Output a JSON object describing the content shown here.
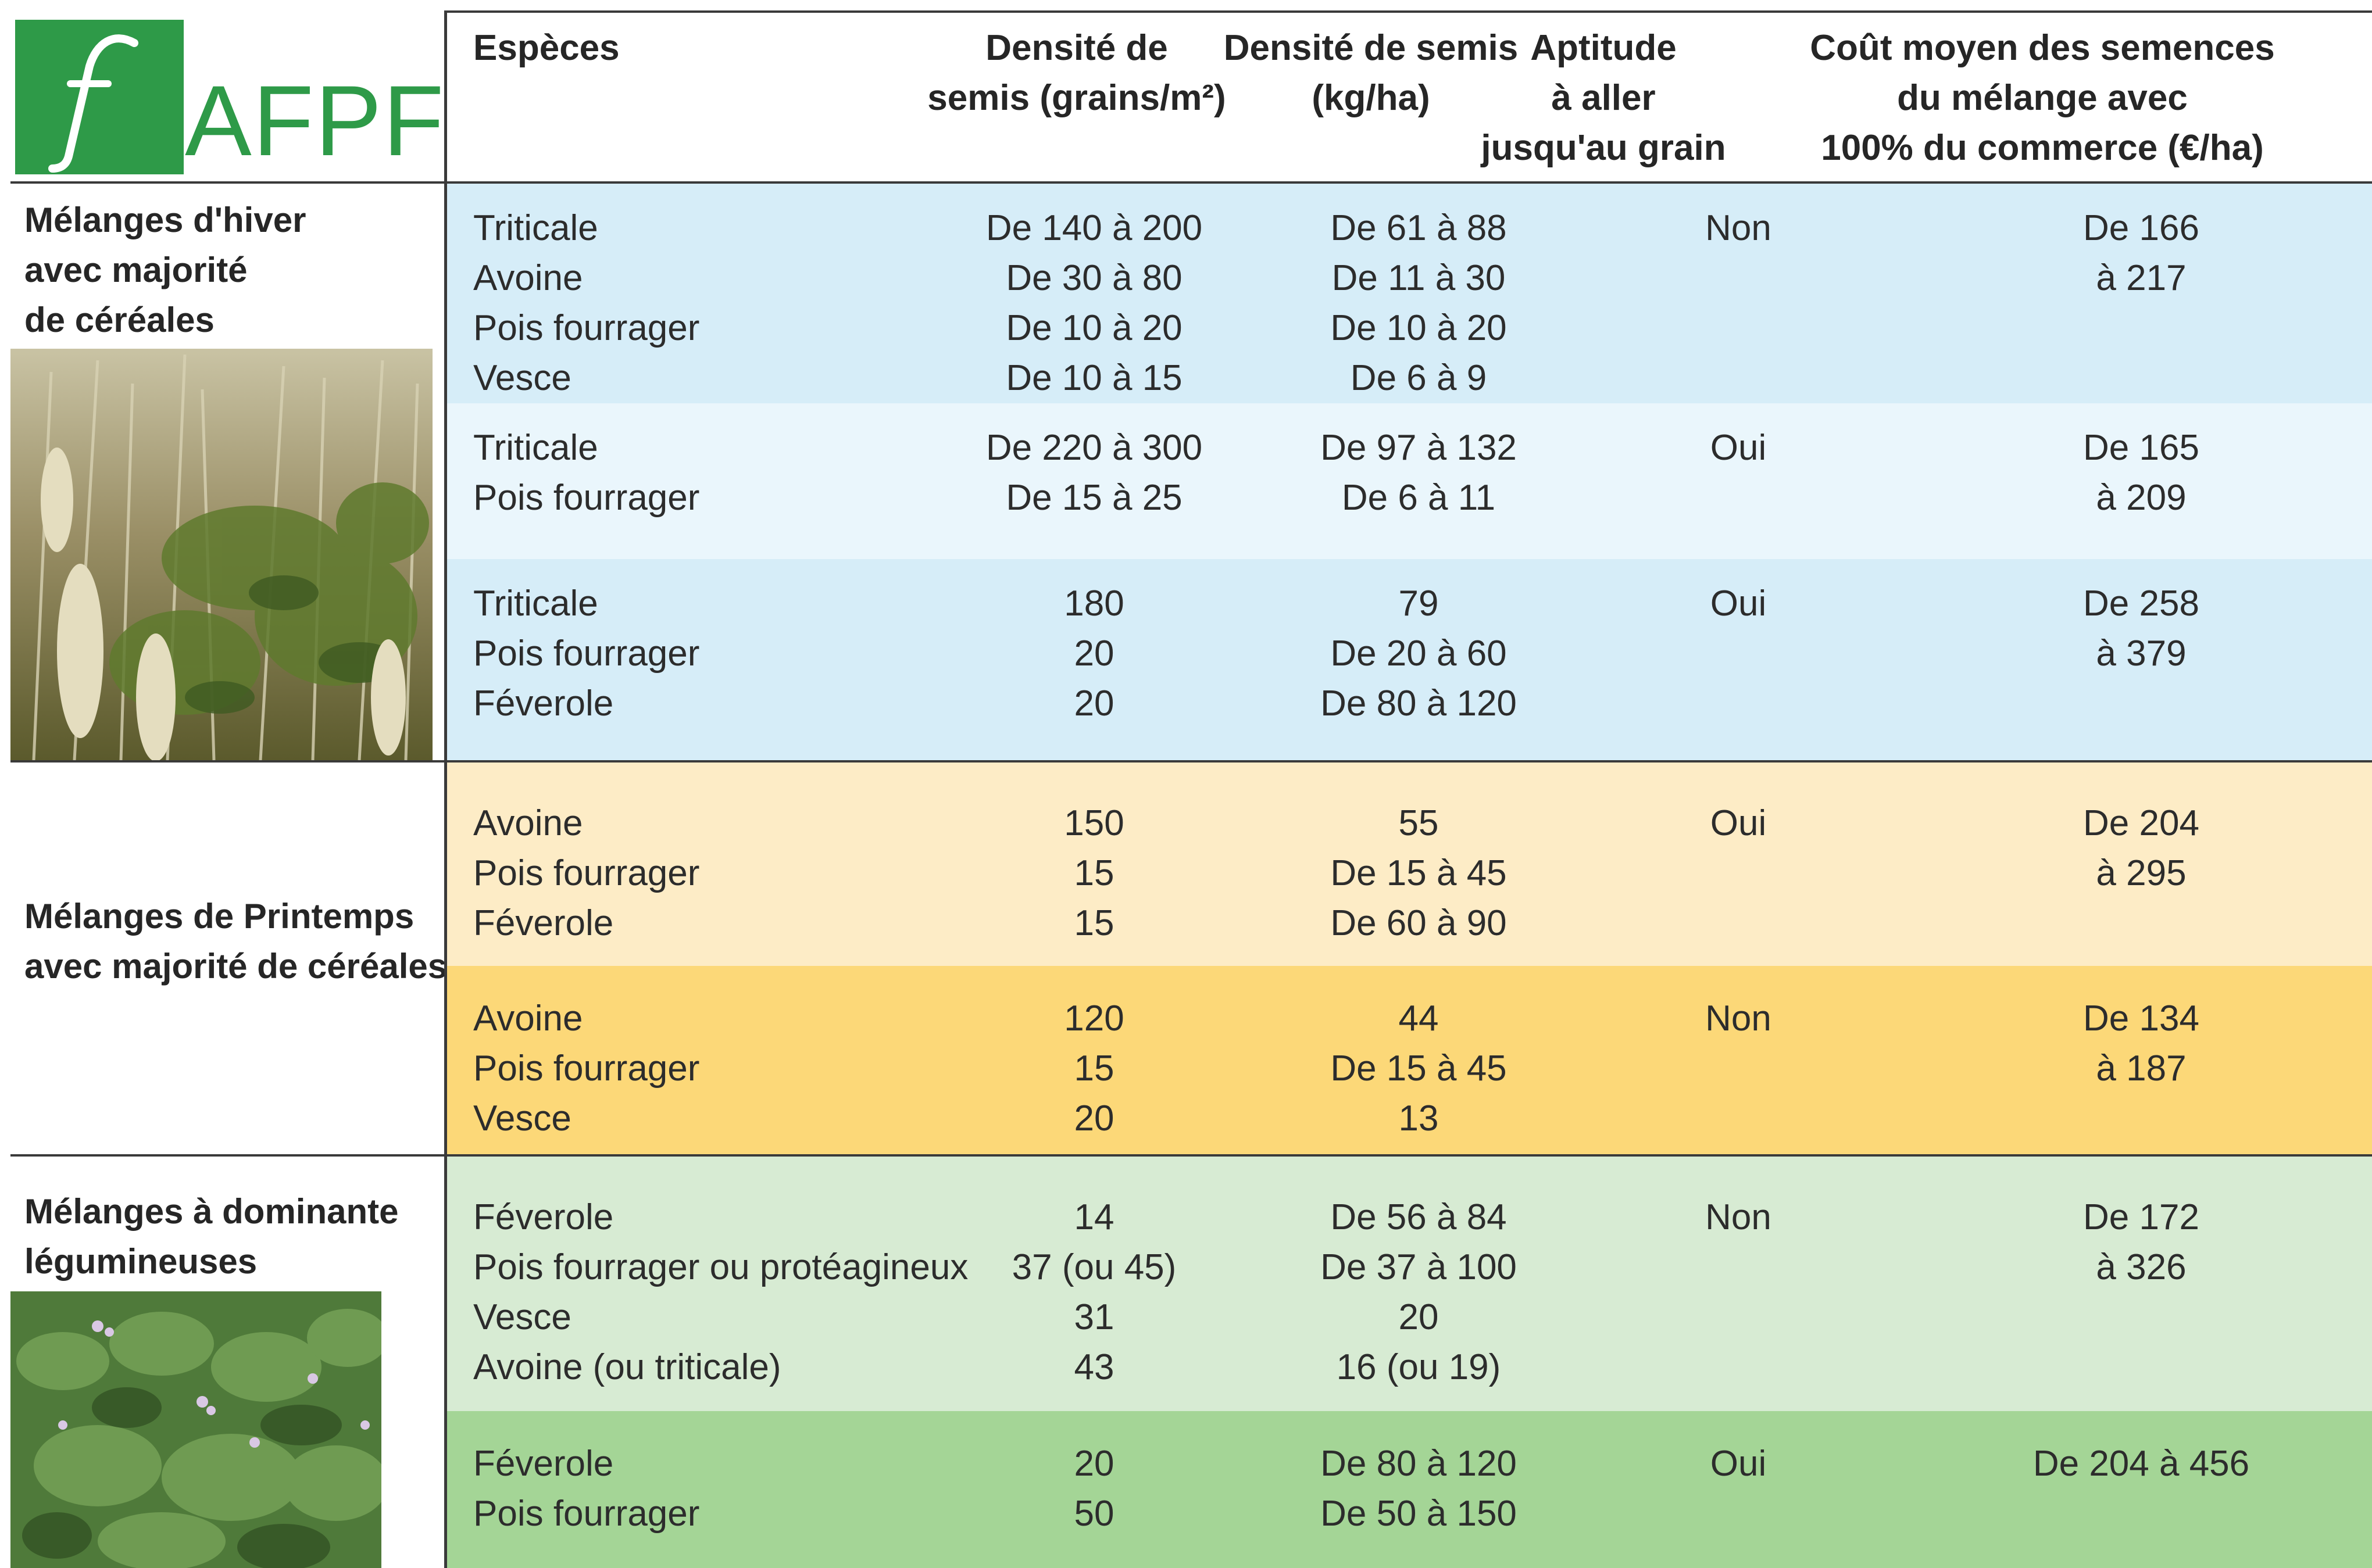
{
  "logo": {
    "text": "AFPF",
    "mark": "f"
  },
  "headers": {
    "especes": [
      "Espèces"
    ],
    "densite_grains": [
      "Densité de",
      "semis (grains/m²)"
    ],
    "densite_kg": [
      "Densité de semis",
      "(kg/ha)"
    ],
    "aptitude": [
      "Aptitude",
      "à aller",
      "jusqu'au grain"
    ],
    "cout": [
      "Coût moyen des semences",
      "du mélange avec",
      "100% du commerce (€/ha)"
    ]
  },
  "sections": [
    {
      "title": [
        "Mélanges d'hiver",
        "avec majorité",
        "de céréales"
      ]
    },
    {
      "title": [
        "Mélanges de Printemps",
        "avec majorité de céréales"
      ]
    },
    {
      "title": [
        "Mélanges à dominante",
        "légumineuses"
      ]
    }
  ],
  "rows": [
    {
      "color": "#d6edf8",
      "especes": [
        "Triticale",
        "Avoine",
        "Pois fourrager",
        "Vesce"
      ],
      "grains": [
        "De 140 à 200",
        "De 30 à 80",
        "De 10 à 20",
        "De 10 à 15"
      ],
      "kg": [
        "De 61 à 88",
        "De 11 à 30",
        "De 10 à 20",
        "De 6 à 9"
      ],
      "aptitude": [
        "Non"
      ],
      "cout": [
        "De 166",
        "à 217"
      ]
    },
    {
      "color": "#eaf6fc",
      "especes": [
        "Triticale",
        "Pois fourrager"
      ],
      "grains": [
        "De 220 à 300",
        "De 15 à 25"
      ],
      "kg": [
        "De 97 à 132",
        "De 6 à 11"
      ],
      "aptitude": [
        "Oui"
      ],
      "cout": [
        "De 165",
        "à 209"
      ]
    },
    {
      "color": "#d6edf8",
      "especes": [
        "Triticale",
        "Pois fourrager",
        "Féverole"
      ],
      "grains": [
        "180",
        "20",
        "20"
      ],
      "kg": [
        "79",
        "De 20 à 60",
        "De 80 à 120"
      ],
      "aptitude": [
        "Oui"
      ],
      "cout": [
        "De 258",
        "à 379"
      ]
    },
    {
      "color": "#fdecc6",
      "especes": [
        "Avoine",
        "Pois fourrager",
        "Féverole"
      ],
      "grains": [
        "150",
        "15",
        "15"
      ],
      "kg": [
        "55",
        "De 15 à 45",
        "De 60 à 90"
      ],
      "aptitude": [
        "Oui"
      ],
      "cout": [
        "De 204",
        "à 295"
      ]
    },
    {
      "color": "#fcd878",
      "especes": [
        "Avoine",
        "Pois fourrager",
        "Vesce"
      ],
      "grains": [
        "120",
        "15",
        "20"
      ],
      "kg": [
        "44",
        "De 15 à 45",
        "13"
      ],
      "aptitude": [
        "Non"
      ],
      "cout": [
        "De 134",
        "à 187"
      ]
    },
    {
      "color": "#d7ebd3",
      "especes": [
        "Féverole",
        "Pois fourrager ou protéagineux",
        "Vesce",
        "Avoine (ou triticale)"
      ],
      "grains": [
        "14",
        "37 (ou 45)",
        "31",
        "43"
      ],
      "kg": [
        "De 56 à 84",
        "De 37 à 100",
        "20",
        "16 (ou 19)"
      ],
      "aptitude": [
        "Non"
      ],
      "cout": [
        "De 172",
        "à 326"
      ]
    },
    {
      "color": "#a4d596",
      "especes": [
        "Féverole",
        "Pois fourrager"
      ],
      "grains": [
        "20",
        "50"
      ],
      "kg": [
        "De 80 à 120",
        "De 50 à 150"
      ],
      "aptitude": [
        "Oui"
      ],
      "cout": [
        "De 204 à 456"
      ]
    }
  ]
}
